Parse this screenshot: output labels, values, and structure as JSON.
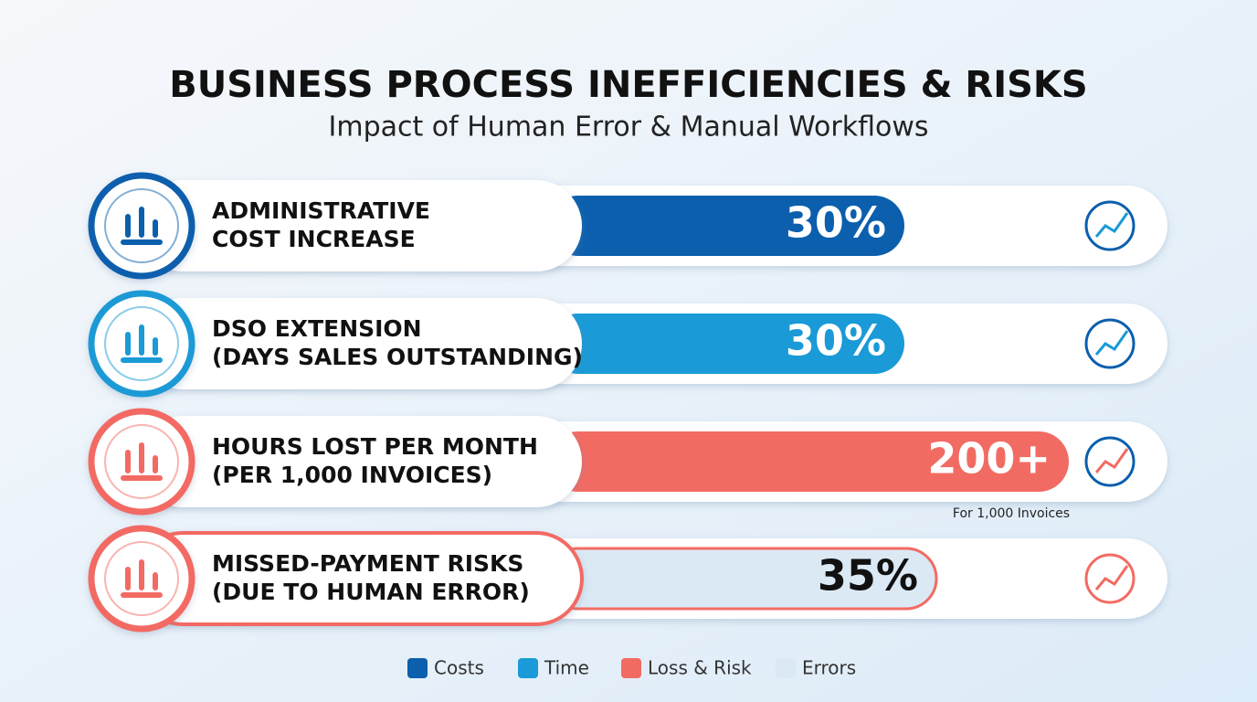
{
  "header": {
    "title": "BUSINESS PROCESS INEFFICIENCIES & RISKS",
    "subtitle": "Impact of Human Error & Manual Workflows"
  },
  "rows": [
    {
      "label": [
        "ADMINISTRATIVE",
        "COST INCREASE"
      ],
      "value": "30%",
      "color": "#0b5fad"
    },
    {
      "label": [
        "DSO EXTENSION",
        "(DAYS SALES OUTSTANDING)"
      ],
      "value": "30%",
      "color": "#1a9ad6"
    },
    {
      "label": [
        "HOURS LOST PER MONTH",
        "(PER 1,000 INVOICES)"
      ],
      "value": "200+",
      "color": "#f26b63"
    },
    {
      "label": [
        "MISSED-PAYMENT RISKS",
        "(DUE TO HUMAN ERROR)"
      ],
      "value": "35%",
      "color": "#dbe9f5"
    }
  ],
  "note": "For 1,000 Invoices",
  "legend": [
    {
      "label": "Costs",
      "color": "#0b5fad"
    },
    {
      "label": "Time",
      "color": "#1a9ad6"
    },
    {
      "label": "Loss & Risk",
      "color": "#f26b63"
    },
    {
      "label": "Errors",
      "color": "#dbe9f5"
    }
  ]
}
